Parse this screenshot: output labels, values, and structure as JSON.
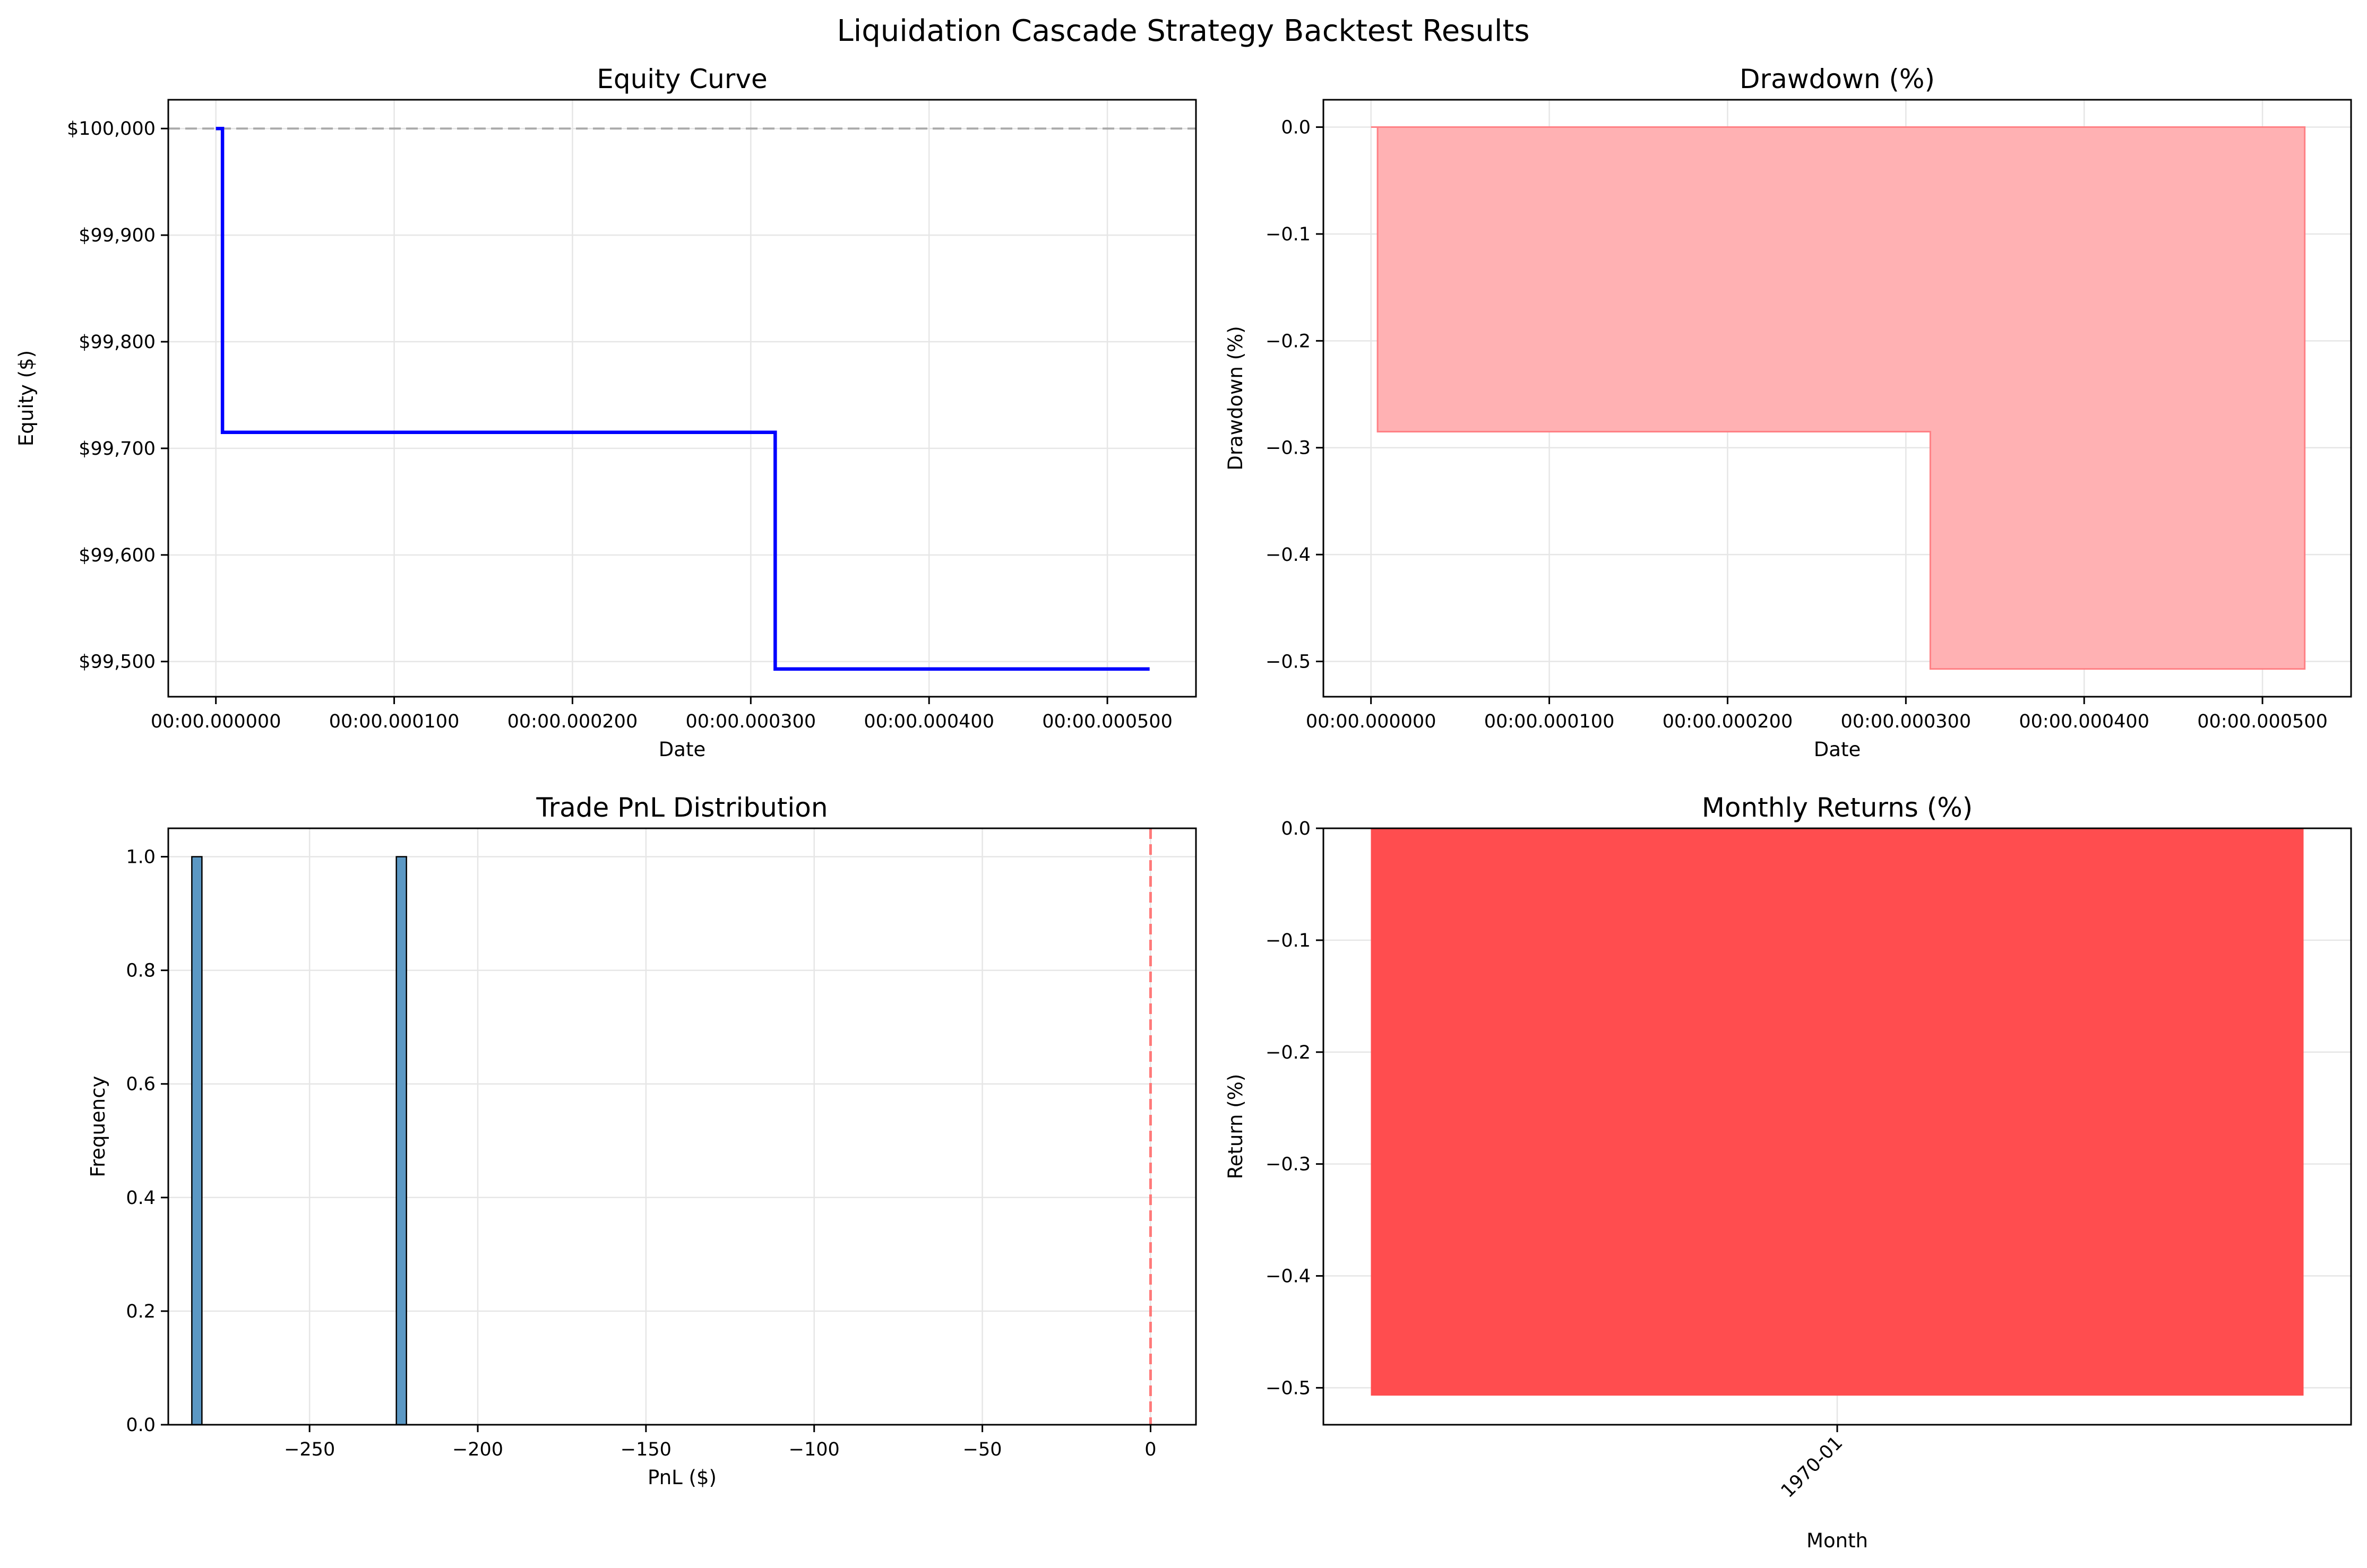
{
  "figure": {
    "suptitle": "Liquidation Cascade Strategy Backtest Results"
  },
  "colors": {
    "equity_line": "#0000ff",
    "baseline_dash": "#808080",
    "drawdown_fill": "#ffb1b3",
    "drawdown_edge": "#ff8085",
    "hist_bar": "#5b98c4",
    "hist_edge": "#000000",
    "zero_line": "#ff7a7a",
    "monthly_bar": "#ff4d4f",
    "grid": "#e6e6e6"
  },
  "chart_data": [
    {
      "id": "equity",
      "type": "line",
      "title": "Equity Curve",
      "xlabel": "Date",
      "ylabel": "Equity ($)",
      "x_ticks": [
        {
          "value": 0.0,
          "label": "00:00.000000"
        },
        {
          "value": 0.0001,
          "label": "00:00.000100"
        },
        {
          "value": 0.0002,
          "label": "00:00.000200"
        },
        {
          "value": 0.0003,
          "label": "00:00.000300"
        },
        {
          "value": 0.0004,
          "label": "00:00.000400"
        },
        {
          "value": 0.0005,
          "label": "00:00.000500"
        }
      ],
      "y_ticks": [
        {
          "value": 99500,
          "label": "$99,500"
        },
        {
          "value": 99600,
          "label": "$99,600"
        },
        {
          "value": 99700,
          "label": "$99,700"
        },
        {
          "value": 99800,
          "label": "$99,800"
        },
        {
          "value": 99900,
          "label": "$99,900"
        },
        {
          "value": 100000,
          "label": "$100,000"
        }
      ],
      "xlim": [
        -2.67e-05,
        0.0005497
      ],
      "ylim": [
        99467,
        100027
      ],
      "baseline": 100000,
      "x": [
        0.0,
        3.7e-06,
        3.7e-06,
        0.0003137,
        0.0003137,
        0.0005237
      ],
      "y": [
        100000,
        100000,
        99715,
        99715,
        99493,
        99493
      ],
      "grid": true
    },
    {
      "id": "drawdown",
      "type": "area",
      "title": "Drawdown (%)",
      "xlabel": "Date",
      "ylabel": "Drawdown (%)",
      "x_ticks": [
        {
          "value": 0.0,
          "label": "00:00.000000"
        },
        {
          "value": 0.0001,
          "label": "00:00.000100"
        },
        {
          "value": 0.0002,
          "label": "00:00.000200"
        },
        {
          "value": 0.0003,
          "label": "00:00.000300"
        },
        {
          "value": 0.0004,
          "label": "00:00.000400"
        },
        {
          "value": 0.0005,
          "label": "00:00.000500"
        }
      ],
      "y_ticks": [
        {
          "value": -0.5,
          "label": "−0.5"
        },
        {
          "value": -0.4,
          "label": "−0.4"
        },
        {
          "value": -0.3,
          "label": "−0.3"
        },
        {
          "value": -0.2,
          "label": "−0.2"
        },
        {
          "value": -0.1,
          "label": "−0.1"
        },
        {
          "value": 0.0,
          "label": "0.0"
        }
      ],
      "xlim": [
        -2.67e-05,
        0.0005497
      ],
      "ylim": [
        -0.533,
        0.0256
      ],
      "x": [
        0.0,
        3.7e-06,
        3.7e-06,
        0.0003137,
        0.0003137,
        0.0005237
      ],
      "y": [
        0.0,
        0.0,
        -0.285,
        -0.285,
        -0.507,
        -0.507
      ],
      "grid": true
    },
    {
      "id": "pnl_hist",
      "type": "bar",
      "title": "Trade PnL Distribution",
      "xlabel": "PnL ($)",
      "ylabel": "Frequency",
      "x_ticks": [
        {
          "value": -250,
          "label": "−250"
        },
        {
          "value": -200,
          "label": "−200"
        },
        {
          "value": -150,
          "label": "−150"
        },
        {
          "value": -100,
          "label": "−100"
        },
        {
          "value": -50,
          "label": "−50"
        },
        {
          "value": 0,
          "label": "0"
        }
      ],
      "y_ticks": [
        {
          "value": 0.0,
          "label": "0.0"
        },
        {
          "value": 0.2,
          "label": "0.2"
        },
        {
          "value": 0.4,
          "label": "0.4"
        },
        {
          "value": 0.6,
          "label": "0.6"
        },
        {
          "value": 0.8,
          "label": "0.8"
        },
        {
          "value": 1.0,
          "label": "1.0"
        }
      ],
      "xlim": [
        -292,
        13.5
      ],
      "ylim": [
        0,
        1.05
      ],
      "bins": [
        {
          "x0": -285.0,
          "x1": -282.0,
          "count": 1
        },
        {
          "x0": -224.2,
          "x1": -221.2,
          "count": 1
        }
      ],
      "zero_line": 0,
      "grid": true
    },
    {
      "id": "monthly",
      "type": "bar",
      "title": "Monthly Returns (%)",
      "xlabel": "Month",
      "ylabel": "Return (%)",
      "categories": [
        "1970-01"
      ],
      "values": [
        -0.507
      ],
      "y_ticks": [
        {
          "value": -0.5,
          "label": "−0.5"
        },
        {
          "value": -0.4,
          "label": "−0.4"
        },
        {
          "value": -0.3,
          "label": "−0.3"
        },
        {
          "value": -0.2,
          "label": "−0.2"
        },
        {
          "value": -0.1,
          "label": "−0.1"
        },
        {
          "value": 0.0,
          "label": "0.0"
        }
      ],
      "ylim": [
        -0.533,
        0.0
      ],
      "grid": true
    }
  ]
}
